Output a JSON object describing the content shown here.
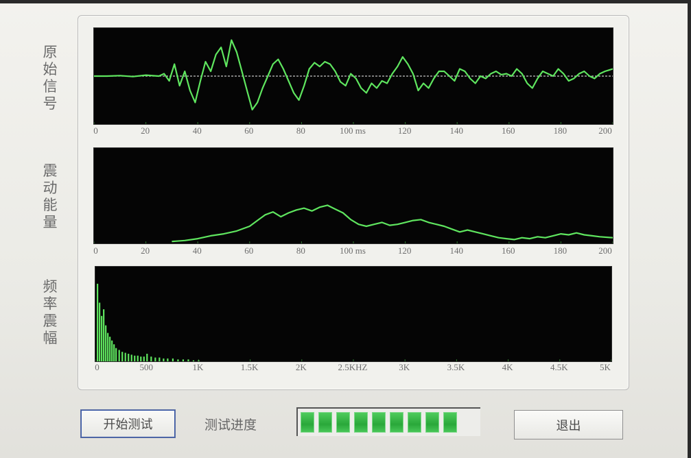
{
  "labels": {
    "raw_signal": "原始信号",
    "vibration_energy": "震动能量",
    "frequency_amplitude": "频率震幅"
  },
  "chart_data": [
    {
      "type": "line",
      "xlim": [
        0,
        200
      ],
      "ylim": [
        -1,
        1
      ],
      "ticks": [
        "0",
        "20",
        "40",
        "60",
        "80",
        "100 ms",
        "120",
        "140",
        "160",
        "180",
        "200"
      ],
      "tick_values": [
        0,
        20,
        40,
        60,
        80,
        100,
        120,
        140,
        160,
        180,
        200
      ],
      "baseline": 0,
      "x": [
        0,
        5,
        10,
        15,
        20,
        25,
        27,
        29,
        31,
        33,
        35,
        37,
        39,
        41,
        43,
        45,
        47,
        49,
        51,
        53,
        55,
        57,
        59,
        61,
        63,
        65,
        67,
        69,
        71,
        73,
        75,
        77,
        79,
        81,
        83,
        85,
        87,
        89,
        91,
        93,
        95,
        97,
        99,
        101,
        103,
        105,
        107,
        109,
        111,
        113,
        115,
        117,
        119,
        121,
        123,
        125,
        127,
        129,
        131,
        133,
        135,
        137,
        139,
        141,
        143,
        145,
        147,
        149,
        151,
        153,
        155,
        157,
        159,
        161,
        163,
        165,
        167,
        169,
        171,
        173,
        175,
        177,
        179,
        181,
        183,
        185,
        187,
        189,
        191,
        193,
        195,
        197,
        200
      ],
      "y": [
        0,
        0,
        0.01,
        -0.01,
        0.02,
        0,
        0.05,
        -0.1,
        0.25,
        -0.2,
        0.1,
        -0.3,
        -0.55,
        -0.1,
        0.3,
        0.1,
        0.45,
        0.6,
        0.2,
        0.75,
        0.5,
        0.1,
        -0.3,
        -0.7,
        -0.55,
        -0.25,
        0,
        0.25,
        0.35,
        0.15,
        -0.1,
        -0.35,
        -0.5,
        -0.2,
        0.15,
        0.28,
        0.2,
        0.3,
        0.25,
        0.1,
        -0.12,
        -0.2,
        0.05,
        -0.05,
        -0.25,
        -0.35,
        -0.15,
        -0.25,
        -0.1,
        -0.15,
        0.05,
        0.2,
        0.4,
        0.25,
        0.05,
        -0.3,
        -0.15,
        -0.25,
        -0.05,
        0.1,
        0.1,
        0,
        -0.1,
        0.15,
        0.1,
        -0.05,
        -0.15,
        0,
        -0.05,
        0.05,
        0.1,
        0.03,
        0.05,
        0,
        0.15,
        0.05,
        -0.15,
        -0.25,
        -0.05,
        0.1,
        0.05,
        0,
        0.15,
        0.05,
        -0.1,
        -0.05,
        0.05,
        0.1,
        0,
        -0.05,
        0.05,
        0.1,
        0.15
      ]
    },
    {
      "type": "line",
      "xlim": [
        0,
        200
      ],
      "ylim": [
        0,
        1
      ],
      "ticks": [
        "0",
        "20",
        "40",
        "60",
        "80",
        "100 ms",
        "120",
        "140",
        "160",
        "180",
        "200"
      ],
      "tick_values": [
        0,
        20,
        40,
        60,
        80,
        100,
        120,
        140,
        160,
        180,
        200
      ],
      "x": [
        30,
        35,
        40,
        45,
        50,
        55,
        60,
        63,
        66,
        69,
        72,
        75,
        78,
        81,
        84,
        87,
        90,
        93,
        96,
        99,
        102,
        105,
        108,
        111,
        114,
        117,
        120,
        123,
        126,
        129,
        132,
        135,
        138,
        141,
        144,
        147,
        150,
        153,
        156,
        159,
        162,
        165,
        168,
        171,
        174,
        177,
        180,
        183,
        186,
        189,
        192,
        195,
        200
      ],
      "y": [
        0.02,
        0.03,
        0.05,
        0.08,
        0.1,
        0.13,
        0.18,
        0.24,
        0.3,
        0.33,
        0.28,
        0.32,
        0.35,
        0.37,
        0.34,
        0.38,
        0.4,
        0.36,
        0.32,
        0.25,
        0.2,
        0.18,
        0.2,
        0.22,
        0.19,
        0.2,
        0.22,
        0.24,
        0.25,
        0.22,
        0.2,
        0.18,
        0.15,
        0.12,
        0.14,
        0.12,
        0.1,
        0.08,
        0.06,
        0.05,
        0.04,
        0.06,
        0.05,
        0.07,
        0.06,
        0.08,
        0.1,
        0.09,
        0.11,
        0.09,
        0.08,
        0.07,
        0.06
      ]
    },
    {
      "type": "bar",
      "xlim": [
        0,
        5000
      ],
      "ylim": [
        0,
        1
      ],
      "ticks": [
        "0",
        "500",
        "1K",
        "1.5K",
        "2K",
        "2.5KHZ",
        "3K",
        "3.5K",
        "4K",
        "4.5K",
        "5K"
      ],
      "tick_values": [
        0,
        500,
        1000,
        1500,
        2000,
        2500,
        3000,
        3500,
        4000,
        4500,
        5000
      ],
      "x": [
        20,
        40,
        60,
        80,
        100,
        120,
        140,
        160,
        180,
        200,
        230,
        260,
        290,
        320,
        350,
        380,
        410,
        440,
        470,
        500,
        540,
        580,
        620,
        660,
        700,
        750,
        800,
        850,
        900,
        950,
        1000
      ],
      "y": [
        0.82,
        0.62,
        0.48,
        0.55,
        0.38,
        0.3,
        0.26,
        0.22,
        0.18,
        0.14,
        0.12,
        0.1,
        0.09,
        0.08,
        0.07,
        0.06,
        0.06,
        0.05,
        0.05,
        0.08,
        0.05,
        0.04,
        0.04,
        0.03,
        0.03,
        0.03,
        0.02,
        0.02,
        0.02,
        0.01,
        0.01
      ]
    }
  ],
  "buttons": {
    "start": "开始测试",
    "exit": "退出"
  },
  "progress": {
    "label": "测试进度",
    "value": 0.9,
    "segments_total": 10,
    "segments_filled": 9
  },
  "colors": {
    "trace": "#5fe65f",
    "plot_background": "#050505",
    "progress_fill": "#3bbf4a"
  }
}
